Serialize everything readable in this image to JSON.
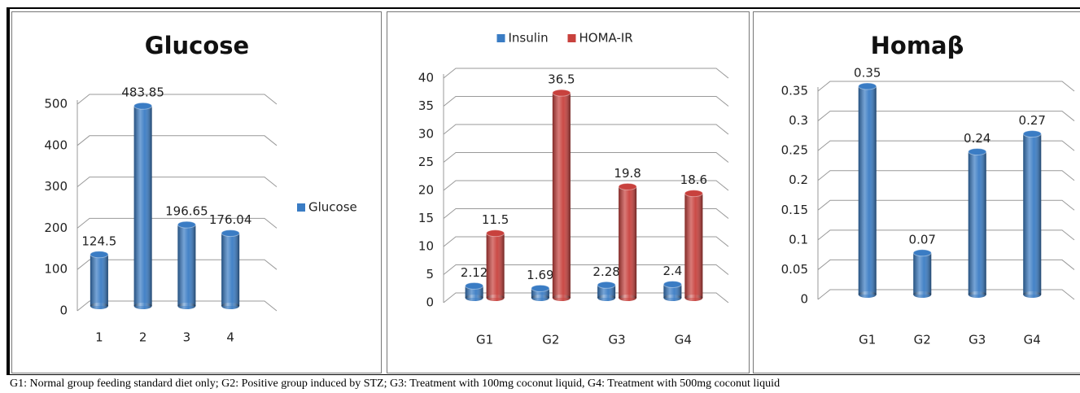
{
  "chart_data": [
    {
      "type": "bar",
      "title": "Glucose",
      "categories": [
        "1",
        "2",
        "3",
        "4"
      ],
      "series": [
        {
          "name": "Glucose",
          "color": "#3a7cc4",
          "values": [
            124.5,
            483.85,
            196.65,
            176.04
          ]
        }
      ],
      "ylim": [
        0,
        500
      ],
      "yticks": [
        0,
        100,
        200,
        300,
        400,
        500
      ],
      "grid": true,
      "legend": "right"
    },
    {
      "type": "bar",
      "categories": [
        "G1",
        "G2",
        "G3",
        "G4"
      ],
      "series": [
        {
          "name": "Insulin",
          "color": "#3a7cc4",
          "values": [
            2.12,
            1.69,
            2.28,
            2.4
          ]
        },
        {
          "name": "HOMA-IR",
          "color": "#c8413d",
          "values": [
            11.5,
            36.5,
            19.8,
            18.6
          ]
        }
      ],
      "ylim": [
        0,
        40
      ],
      "yticks": [
        0,
        5,
        10,
        15,
        20,
        25,
        30,
        35,
        40
      ],
      "grid": true,
      "legend": "top"
    },
    {
      "type": "bar",
      "title": "Homaβ",
      "categories": [
        "G1",
        "G2",
        "G3",
        "G4"
      ],
      "values": [
        0.35,
        0.07,
        0.24,
        0.27
      ],
      "color": "#3a7cc4",
      "ylim": [
        0,
        0.35
      ],
      "yticks": [
        0,
        0.05,
        0.1,
        0.15,
        0.2,
        0.25,
        0.3,
        0.35
      ],
      "grid": true
    }
  ],
  "caption": "G1: Normal group feeding standard diet only; G2: Positive group induced by STZ; G3: Treatment with 100mg coconut liquid, G4: Treatment with 500mg coconut liquid"
}
